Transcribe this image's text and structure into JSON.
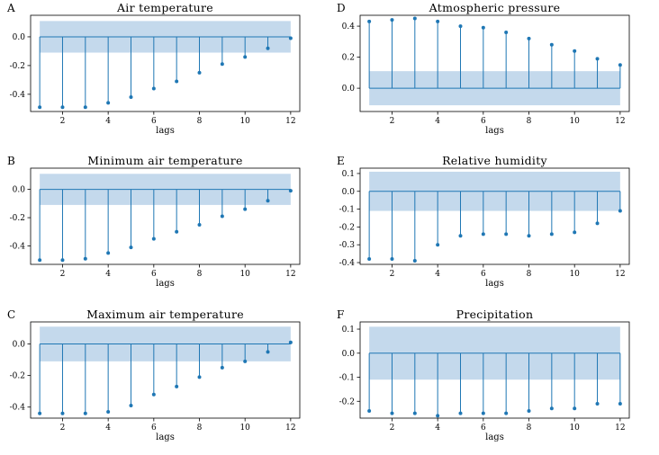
{
  "figure": {
    "background": "#ffffff"
  },
  "chart_data": [
    {
      "type": "stem",
      "panel": "A",
      "title": "Air temperature",
      "xlabel": "lags",
      "ylabel": "",
      "x": [
        1,
        2,
        3,
        4,
        5,
        6,
        7,
        8,
        9,
        10,
        11,
        12
      ],
      "values": [
        -0.49,
        -0.49,
        -0.49,
        -0.46,
        -0.42,
        -0.36,
        -0.31,
        -0.25,
        -0.19,
        -0.14,
        -0.08,
        -0.01
      ],
      "confidence_band": [
        -0.11,
        0.11
      ],
      "xlim": [
        0.6,
        12.4
      ],
      "ylim": [
        -0.52,
        0.15
      ],
      "xticks": [
        2,
        4,
        6,
        8,
        10,
        12
      ],
      "yticks": [
        0.0,
        -0.2,
        -0.4
      ],
      "ytick_labels": [
        "0.0",
        "-0.2",
        "-0.4"
      ],
      "colors": {
        "stem": "#1f77b4",
        "band": "#c4d9ec",
        "baseline": "#1f77b4"
      }
    },
    {
      "type": "stem",
      "panel": "B",
      "title": "Minimum air temperature",
      "xlabel": "lags",
      "ylabel": "",
      "x": [
        1,
        2,
        3,
        4,
        5,
        6,
        7,
        8,
        9,
        10,
        11,
        12
      ],
      "values": [
        -0.5,
        -0.5,
        -0.49,
        -0.45,
        -0.41,
        -0.35,
        -0.3,
        -0.25,
        -0.19,
        -0.14,
        -0.08,
        -0.01
      ],
      "confidence_band": [
        -0.11,
        0.11
      ],
      "xlim": [
        0.6,
        12.4
      ],
      "ylim": [
        -0.53,
        0.15
      ],
      "xticks": [
        2,
        4,
        6,
        8,
        10,
        12
      ],
      "yticks": [
        0.0,
        -0.2,
        -0.4
      ],
      "ytick_labels": [
        "0.0",
        "-0.2",
        "-0.4"
      ],
      "colors": {
        "stem": "#1f77b4",
        "band": "#c4d9ec",
        "baseline": "#1f77b4"
      }
    },
    {
      "type": "stem",
      "panel": "C",
      "title": "Maximum air temperature",
      "xlabel": "lags",
      "ylabel": "",
      "x": [
        1,
        2,
        3,
        4,
        5,
        6,
        7,
        8,
        9,
        10,
        11,
        12
      ],
      "values": [
        -0.44,
        -0.44,
        -0.44,
        -0.43,
        -0.39,
        -0.32,
        -0.27,
        -0.21,
        -0.15,
        -0.11,
        -0.05,
        0.01
      ],
      "confidence_band": [
        -0.11,
        0.11
      ],
      "xlim": [
        0.6,
        12.4
      ],
      "ylim": [
        -0.47,
        0.14
      ],
      "xticks": [
        2,
        4,
        6,
        8,
        10,
        12
      ],
      "yticks": [
        0.0,
        -0.2,
        -0.4
      ],
      "ytick_labels": [
        "0.0",
        "-0.2",
        "-0.4"
      ],
      "colors": {
        "stem": "#1f77b4",
        "band": "#c4d9ec",
        "baseline": "#1f77b4"
      }
    },
    {
      "type": "stem",
      "panel": "D",
      "title": "Atmospheric pressure",
      "xlabel": "lags",
      "ylabel": "",
      "x": [
        1,
        2,
        3,
        4,
        5,
        6,
        7,
        8,
        9,
        10,
        11,
        12
      ],
      "values": [
        0.43,
        0.44,
        0.45,
        0.43,
        0.4,
        0.39,
        0.36,
        0.32,
        0.28,
        0.24,
        0.19,
        0.15
      ],
      "confidence_band": [
        -0.11,
        0.11
      ],
      "xlim": [
        0.6,
        12.4
      ],
      "ylim": [
        -0.15,
        0.47
      ],
      "xticks": [
        2,
        4,
        6,
        8,
        10,
        12
      ],
      "yticks": [
        0.4,
        0.2,
        0.0
      ],
      "ytick_labels": [
        "0.4",
        "0.2",
        "0.0"
      ],
      "colors": {
        "stem": "#1f77b4",
        "band": "#c4d9ec",
        "baseline": "#1f77b4"
      }
    },
    {
      "type": "stem",
      "panel": "E",
      "title": "Relative humidity",
      "xlabel": "lags",
      "ylabel": "",
      "x": [
        1,
        2,
        3,
        4,
        5,
        6,
        7,
        8,
        9,
        10,
        11,
        12
      ],
      "values": [
        -0.38,
        -0.38,
        -0.39,
        -0.3,
        -0.25,
        -0.24,
        -0.24,
        -0.25,
        -0.24,
        -0.23,
        -0.18,
        -0.11
      ],
      "confidence_band": [
        -0.11,
        0.11
      ],
      "xlim": [
        0.6,
        12.4
      ],
      "ylim": [
        -0.41,
        0.13
      ],
      "xticks": [
        2,
        4,
        6,
        8,
        10,
        12
      ],
      "yticks": [
        0.1,
        0.0,
        -0.1,
        -0.2,
        -0.3,
        -0.4
      ],
      "ytick_labels": [
        "0.1",
        "0.0",
        "-0.1",
        "-0.2",
        "-0.3",
        "-0.4"
      ],
      "colors": {
        "stem": "#1f77b4",
        "band": "#c4d9ec",
        "baseline": "#1f77b4"
      }
    },
    {
      "type": "stem",
      "panel": "F",
      "title": "Precipitation",
      "xlabel": "lags",
      "ylabel": "",
      "x": [
        1,
        2,
        3,
        4,
        5,
        6,
        7,
        8,
        9,
        10,
        11,
        12
      ],
      "values": [
        -0.24,
        -0.25,
        -0.25,
        -0.26,
        -0.25,
        -0.25,
        -0.25,
        -0.24,
        -0.23,
        -0.23,
        -0.21,
        -0.21
      ],
      "confidence_band": [
        -0.11,
        0.11
      ],
      "xlim": [
        0.6,
        12.4
      ],
      "ylim": [
        -0.27,
        0.13
      ],
      "xticks": [
        2,
        4,
        6,
        8,
        10,
        12
      ],
      "yticks": [
        0.1,
        0.0,
        -0.1,
        -0.2
      ],
      "ytick_labels": [
        "0.1",
        "0.0",
        "-0.1",
        "-0.2"
      ],
      "colors": {
        "stem": "#1f77b4",
        "band": "#c4d9ec",
        "baseline": "#1f77b4"
      }
    }
  ]
}
